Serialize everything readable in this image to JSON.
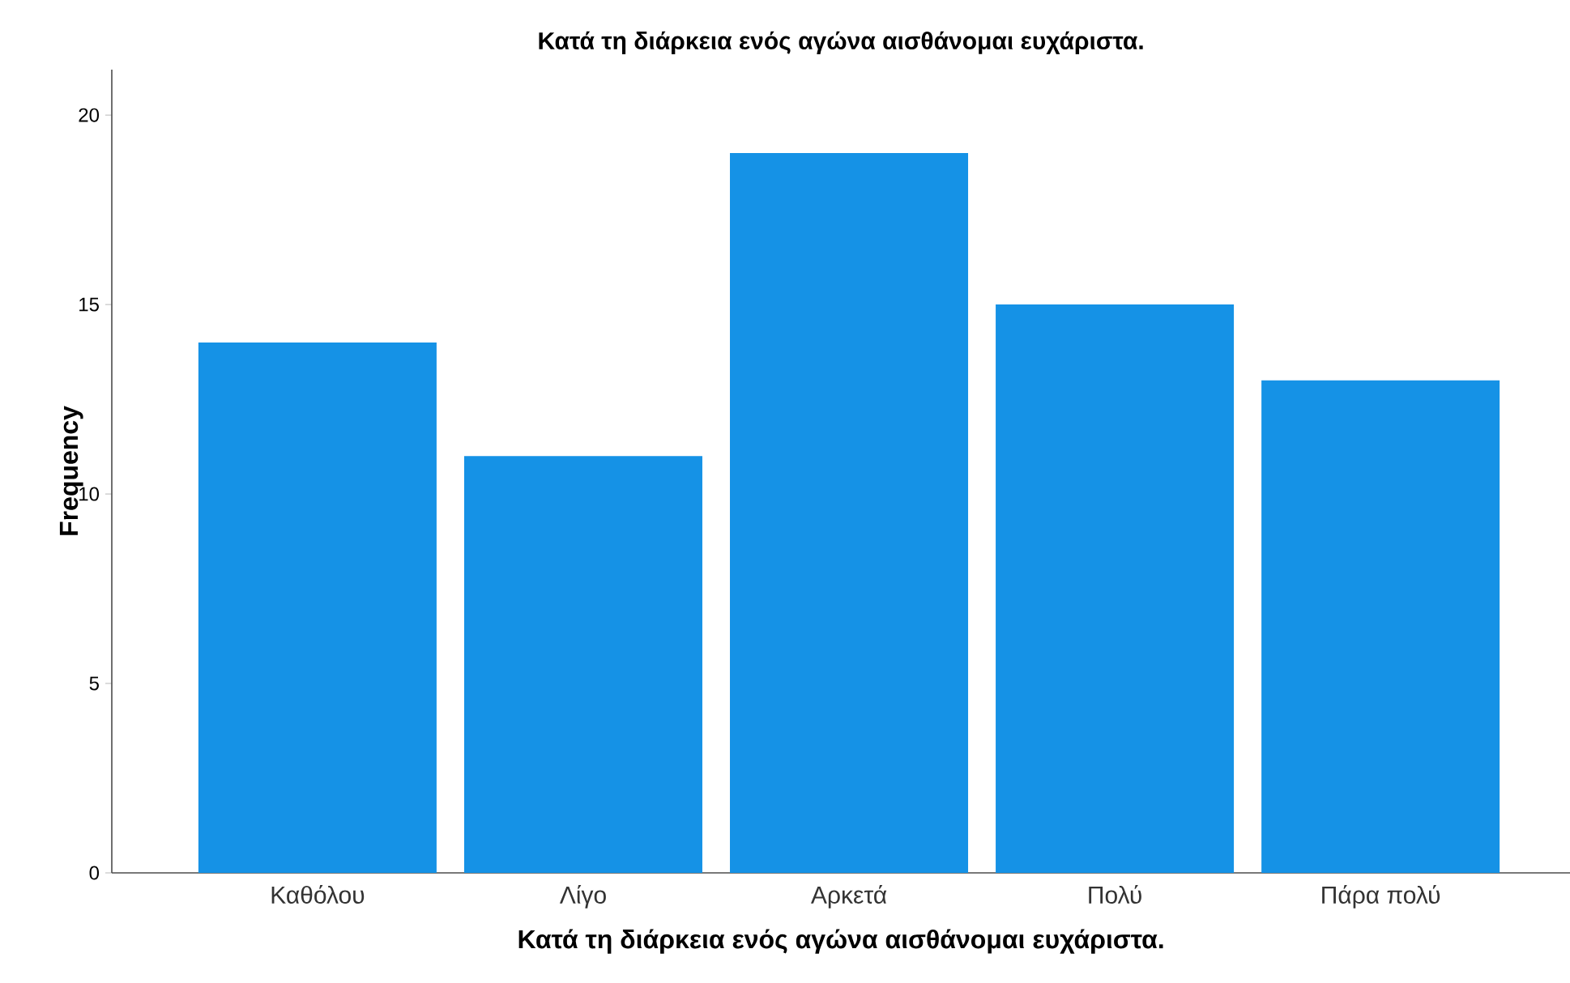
{
  "chart_data": {
    "type": "bar",
    "title": "Κατά τη διάρκεια ενός αγώνα αισθάνομαι ευχάριστα.",
    "xlabel": "Κατά τη διάρκεια ενός αγώνα αισθάνομαι ευχάριστα.",
    "ylabel": "Frequency",
    "categories": [
      "Καθόλου",
      "Λίγο",
      "Αρκετά",
      "Πολύ",
      "Πάρα πολύ"
    ],
    "values": [
      14,
      11,
      19,
      15,
      13
    ],
    "color": "#1592e6",
    "ylim": [
      0,
      21.2
    ],
    "yticks": [
      0,
      5,
      10,
      15,
      20
    ],
    "grid": false
  }
}
